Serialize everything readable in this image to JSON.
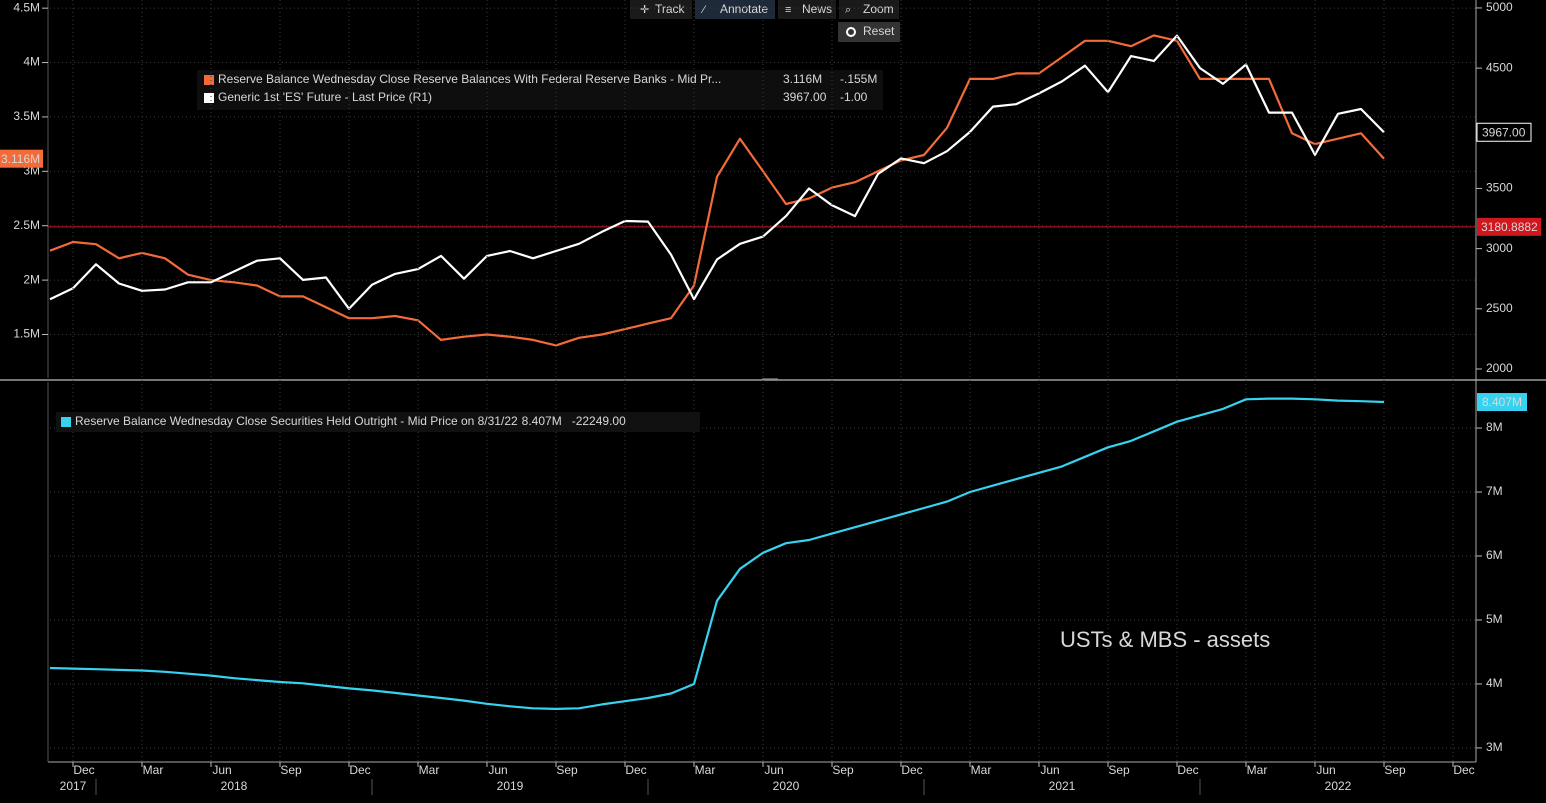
{
  "toolbar": [
    "Track",
    "Annotate",
    "News",
    "Zoom",
    "Reset"
  ],
  "chart_data": [
    {
      "type": "line",
      "x": [
        "2017-11",
        "2017-12",
        "2018-01",
        "2018-02",
        "2018-03",
        "2018-04",
        "2018-05",
        "2018-06",
        "2018-07",
        "2018-08",
        "2018-09",
        "2018-10",
        "2018-11",
        "2018-12",
        "2019-01",
        "2019-02",
        "2019-03",
        "2019-04",
        "2019-05",
        "2019-06",
        "2019-07",
        "2019-08",
        "2019-09",
        "2019-10",
        "2019-11",
        "2019-12",
        "2020-01",
        "2020-02",
        "2020-03",
        "2020-04",
        "2020-05",
        "2020-06",
        "2020-07",
        "2020-08",
        "2020-09",
        "2020-10",
        "2020-11",
        "2020-12",
        "2021-01",
        "2021-02",
        "2021-03",
        "2021-04",
        "2021-05",
        "2021-06",
        "2021-07",
        "2021-08",
        "2021-09",
        "2021-10",
        "2021-11",
        "2021-12",
        "2022-01",
        "2022-02",
        "2022-03",
        "2022-04",
        "2022-05",
        "2022-06",
        "2022-07",
        "2022-08",
        "2022-09"
      ],
      "xlim": [
        "2017-11",
        "2023-01"
      ],
      "ylim": [
        1100000,
        4575000
      ],
      "yticks": [
        {
          "value": 1500000,
          "label": "1.5M"
        },
        {
          "value": 2000000,
          "label": "2M"
        },
        {
          "value": 2500000,
          "label": "2.5M"
        },
        {
          "value": 3000000,
          "label": "3M"
        },
        {
          "value": 3500000,
          "label": "3.5M"
        },
        {
          "value": 4000000,
          "label": "4M"
        },
        {
          "value": 4500000,
          "label": "4.5M"
        }
      ],
      "y2lim": [
        1925,
        5066
      ],
      "y2ticks": [
        2000,
        2500,
        3000,
        3500,
        4500,
        5000
      ],
      "grid": true,
      "series": [
        {
          "name": "Reserve Balance Wednesday Close Reserve Balances With Federal Reserve Banks - Mid Pr...",
          "color": "#f26b38",
          "axis": "y",
          "last_value_label": "3.116M",
          "change_label": "-.155M",
          "values": [
            2270000,
            2350000,
            2330000,
            2200000,
            2250000,
            2200000,
            2050000,
            2000000,
            1980000,
            1950000,
            1850000,
            1850000,
            1750000,
            1650000,
            1650000,
            1670000,
            1630000,
            1450000,
            1480000,
            1500000,
            1480000,
            1450000,
            1400000,
            1470000,
            1500000,
            1550000,
            1600000,
            1650000,
            1950000,
            2950000,
            3300000,
            3000000,
            2700000,
            2750000,
            2850000,
            2900000,
            3000000,
            3100000,
            3150000,
            3400000,
            3850000,
            3850000,
            3900000,
            3900000,
            4050000,
            4200000,
            4200000,
            4150000,
            4250000,
            4200000,
            3850000,
            3850000,
            3850000,
            3850000,
            3350000,
            3250000,
            3300000,
            3350000,
            3116000
          ]
        },
        {
          "name": "Generic 1st 'ES' Future - Last Price (R1)",
          "color": "#ffffff",
          "axis": "y2",
          "last_value_label": "3967.00",
          "change_label": "-1.00",
          "values": [
            2580,
            2670,
            2870,
            2710,
            2650,
            2660,
            2720,
            2720,
            2810,
            2900,
            2920,
            2740,
            2760,
            2500,
            2700,
            2790,
            2830,
            2940,
            2750,
            2940,
            2980,
            2920,
            2980,
            3040,
            3140,
            3230,
            3225,
            2950,
            2580,
            2910,
            3040,
            3100,
            3270,
            3500,
            3360,
            3270,
            3620,
            3750,
            3710,
            3810,
            3970,
            4180,
            4200,
            4290,
            4390,
            4520,
            4300,
            4600,
            4560,
            4770,
            4500,
            4370,
            4530,
            4130,
            4130,
            3780,
            4120,
            4160,
            3967
          ]
        }
      ],
      "reference_line": {
        "value": 3180.8882,
        "axis": "y2",
        "color": "#d0161e"
      }
    },
    {
      "type": "line",
      "x": [
        "2017-11",
        "2017-12",
        "2018-01",
        "2018-02",
        "2018-03",
        "2018-04",
        "2018-05",
        "2018-06",
        "2018-07",
        "2018-08",
        "2018-09",
        "2018-10",
        "2018-11",
        "2018-12",
        "2019-01",
        "2019-02",
        "2019-03",
        "2019-04",
        "2019-05",
        "2019-06",
        "2019-07",
        "2019-08",
        "2019-09",
        "2019-10",
        "2019-11",
        "2019-12",
        "2020-01",
        "2020-02",
        "2020-03",
        "2020-04",
        "2020-05",
        "2020-06",
        "2020-07",
        "2020-08",
        "2020-09",
        "2020-10",
        "2020-11",
        "2020-12",
        "2021-01",
        "2021-02",
        "2021-03",
        "2021-04",
        "2021-05",
        "2021-06",
        "2021-07",
        "2021-08",
        "2021-09",
        "2021-10",
        "2021-11",
        "2021-12",
        "2022-01",
        "2022-02",
        "2022-03",
        "2022-04",
        "2022-05",
        "2022-06",
        "2022-07",
        "2022-08",
        "2022-09"
      ],
      "xlim": [
        "2017-11",
        "2023-01"
      ],
      "xticks": [
        {
          "value": "2017-12",
          "label": "Dec"
        },
        {
          "value": "2018-03",
          "label": "Mar"
        },
        {
          "value": "2018-06",
          "label": "Jun"
        },
        {
          "value": "2018-09",
          "label": "Sep"
        },
        {
          "value": "2018-12",
          "label": "Dec"
        },
        {
          "value": "2019-03",
          "label": "Mar"
        },
        {
          "value": "2019-06",
          "label": "Jun"
        },
        {
          "value": "2019-09",
          "label": "Sep"
        },
        {
          "value": "2019-12",
          "label": "Dec"
        },
        {
          "value": "2020-03",
          "label": "Mar"
        },
        {
          "value": "2020-06",
          "label": "Jun"
        },
        {
          "value": "2020-09",
          "label": "Sep"
        },
        {
          "value": "2020-12",
          "label": "Dec"
        },
        {
          "value": "2021-03",
          "label": "Mar"
        },
        {
          "value": "2021-06",
          "label": "Jun"
        },
        {
          "value": "2021-09",
          "label": "Sep"
        },
        {
          "value": "2021-12",
          "label": "Dec"
        },
        {
          "value": "2022-03",
          "label": "Mar"
        },
        {
          "value": "2022-06",
          "label": "Jun"
        },
        {
          "value": "2022-09",
          "label": "Sep"
        },
        {
          "value": "2022-12",
          "label": "Dec"
        }
      ],
      "years": [
        2017,
        2018,
        2019,
        2020,
        2021,
        2022
      ],
      "y2lim": [
        2780000,
        8720000
      ],
      "y2ticks": [
        {
          "value": 3000000,
          "label": "3M"
        },
        {
          "value": 4000000,
          "label": "4M"
        },
        {
          "value": 5000000,
          "label": "5M"
        },
        {
          "value": 6000000,
          "label": "6M"
        },
        {
          "value": 7000000,
          "label": "7M"
        },
        {
          "value": 8000000,
          "label": "8M"
        }
      ],
      "grid": true,
      "annotation": "USTs & MBS - assets",
      "series": [
        {
          "name": "Reserve Balance Wednesday Close Securities Held Outright - Mid Price on 8/31/22",
          "color": "#37d2ef",
          "axis": "y2",
          "last_value_label": "8.407M",
          "change_label": "-22249.00",
          "values": [
            4250000,
            4240000,
            4230000,
            4220000,
            4210000,
            4190000,
            4160000,
            4130000,
            4090000,
            4060000,
            4030000,
            4010000,
            3970000,
            3930000,
            3900000,
            3860000,
            3820000,
            3780000,
            3740000,
            3690000,
            3650000,
            3620000,
            3610000,
            3620000,
            3680000,
            3730000,
            3780000,
            3850000,
            4000000,
            5300000,
            5800000,
            6050000,
            6200000,
            6250000,
            6350000,
            6450000,
            6550000,
            6650000,
            6750000,
            6850000,
            7000000,
            7100000,
            7200000,
            7300000,
            7400000,
            7550000,
            7700000,
            7800000,
            7950000,
            8100000,
            8200000,
            8300000,
            8450000,
            8460000,
            8460000,
            8450000,
            8430000,
            8420000,
            8407000
          ]
        }
      ]
    }
  ]
}
